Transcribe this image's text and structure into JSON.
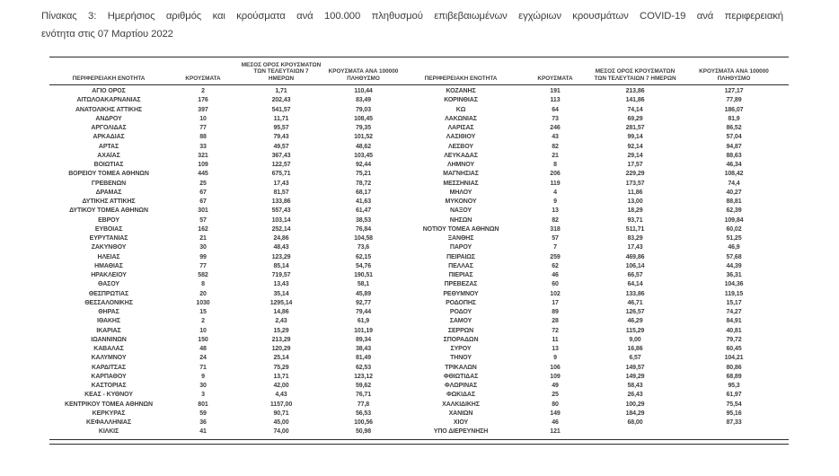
{
  "page": {
    "title_line1": "Πίνακας 3: Ημερήσιος αριθμός και κρούσματα ανά 100.000 πληθυσμού επιβεβαιωμένων εγχώριων κρουσμάτων COVID-19 ανά περιφερειακή",
    "title_line2": "ενότητα στις 07 Μαρτίου 2022"
  },
  "table": {
    "headers": {
      "region": "ΠΕΡΙΦΕΡΕΙΑΚΗ ΕΝΟΤΗΤΑ",
      "cases": "ΚΡΟΥΣΜΑΤΑ",
      "avg7day": "ΜΕΣΟΣ ΟΡΟΣ ΚΡΟΥΣΜΑΤΩΝ ΤΩΝ ΤΕΛΕΥΤΑΙΩΝ 7 ΗΜΕΡΩΝ",
      "per100k": "ΚΡΟΥΣΜΑΤΑ ΑΝΑ 100000 ΠΛΗΘΥΣΜΟ"
    },
    "left_rows": [
      [
        "ΑΓΙΟ ΟΡΟΣ",
        "2",
        "1,71",
        "110,44"
      ],
      [
        "ΑΙΤΩΛΟΑΚΑΡΝΑΝΙΑΣ",
        "176",
        "202,43",
        "83,49"
      ],
      [
        "ΑΝΑΤΟΛΙΚΗΣ ΑΤΤΙΚΗΣ",
        "397",
        "541,57",
        "79,03"
      ],
      [
        "ΑΝΔΡΟΥ",
        "10",
        "11,71",
        "108,45"
      ],
      [
        "ΑΡΓΟΛΙΔΑΣ",
        "77",
        "95,57",
        "79,35"
      ],
      [
        "ΑΡΚΑΔΙΑΣ",
        "88",
        "79,43",
        "101,52"
      ],
      [
        "ΑΡΤΑΣ",
        "33",
        "49,57",
        "48,62"
      ],
      [
        "ΑΧΑΪΑΣ",
        "321",
        "367,43",
        "103,45"
      ],
      [
        "ΒΟΙΩΤΙΑΣ",
        "109",
        "122,57",
        "92,44"
      ],
      [
        "ΒΟΡΕΙΟΥ ΤΟΜΕΑ ΑΘΗΝΩΝ",
        "445",
        "675,71",
        "75,21"
      ],
      [
        "ΓΡΕΒΕΝΩΝ",
        "25",
        "17,43",
        "78,72"
      ],
      [
        "ΔΡΑΜΑΣ",
        "67",
        "81,57",
        "68,17"
      ],
      [
        "ΔΥΤΙΚΗΣ ΑΤΤΙΚΗΣ",
        "67",
        "133,86",
        "41,63"
      ],
      [
        "ΔΥΤΙΚΟΥ ΤΟΜΕΑ ΑΘΗΝΩΝ",
        "301",
        "557,43",
        "61,47"
      ],
      [
        "ΕΒΡΟΥ",
        "57",
        "103,14",
        "38,53"
      ],
      [
        "ΕΥΒΟΙΑΣ",
        "162",
        "252,14",
        "76,84"
      ],
      [
        "ΕΥΡΥΤΑΝΙΑΣ",
        "21",
        "24,86",
        "104,58"
      ],
      [
        "ΖΑΚΥΝΘΟΥ",
        "30",
        "48,43",
        "73,6"
      ],
      [
        "ΗΛΕΙΑΣ",
        "99",
        "123,29",
        "62,15"
      ],
      [
        "ΗΜΑΘΙΑΣ",
        "77",
        "85,14",
        "54,76"
      ],
      [
        "ΗΡΑΚΛΕΙΟΥ",
        "582",
        "719,57",
        "190,51"
      ],
      [
        "ΘΑΣΟΥ",
        "8",
        "13,43",
        "58,1"
      ],
      [
        "ΘΕΣΠΡΩΤΙΑΣ",
        "20",
        "35,14",
        "45,89"
      ],
      [
        "ΘΕΣΣΑΛΟΝΙΚΗΣ",
        "1030",
        "1295,14",
        "92,77"
      ],
      [
        "ΘΗΡΑΣ",
        "15",
        "14,86",
        "79,44"
      ],
      [
        "ΙΘΑΚΗΣ",
        "2",
        "2,43",
        "61,9"
      ],
      [
        "ΙΚΑΡΙΑΣ",
        "10",
        "15,29",
        "101,19"
      ],
      [
        "ΙΩΑΝΝΙΝΩΝ",
        "150",
        "213,29",
        "89,34"
      ],
      [
        "ΚΑΒΑΛΑΣ",
        "48",
        "120,29",
        "38,43"
      ],
      [
        "ΚΑΛΥΜΝΟΥ",
        "24",
        "25,14",
        "81,49"
      ],
      [
        "ΚΑΡΔΙΤΣΑΣ",
        "71",
        "75,29",
        "62,53"
      ],
      [
        "ΚΑΡΠΑΘΟΥ",
        "9",
        "13,71",
        "123,12"
      ],
      [
        "ΚΑΣΤΟΡΙΑΣ",
        "30",
        "42,00",
        "59,62"
      ],
      [
        "ΚΕΑΣ - ΚΥΘΝΟΥ",
        "3",
        "4,43",
        "76,71"
      ],
      [
        "ΚΕΝΤΡΙΚΟΥ ΤΟΜΕΑ ΑΘΗΝΩΝ",
        "801",
        "1157,00",
        "77,8"
      ],
      [
        "ΚΕΡΚΥΡΑΣ",
        "59",
        "90,71",
        "56,53"
      ],
      [
        "ΚΕΦΑΛΛΗΝΙΑΣ",
        "36",
        "45,00",
        "100,56"
      ],
      [
        "ΚΙΛΚΙΣ",
        "41",
        "74,00",
        "50,98"
      ]
    ],
    "right_rows": [
      [
        "ΚΟΖΑΝΗΣ",
        "191",
        "213,86",
        "127,17"
      ],
      [
        "ΚΟΡΙΝΘΙΑΣ",
        "113",
        "141,86",
        "77,89"
      ],
      [
        "ΚΩ",
        "64",
        "74,14",
        "186,07"
      ],
      [
        "ΛΑΚΩΝΙΑΣ",
        "73",
        "69,29",
        "81,9"
      ],
      [
        "ΛΑΡΙΣΑΣ",
        "246",
        "281,57",
        "86,52"
      ],
      [
        "ΛΑΣΙΘΙΟΥ",
        "43",
        "99,14",
        "57,04"
      ],
      [
        "ΛΕΣΒΟΥ",
        "82",
        "92,14",
        "94,87"
      ],
      [
        "ΛΕΥΚΑΔΑΣ",
        "21",
        "29,14",
        "88,63"
      ],
      [
        "ΛΗΜΝΟΥ",
        "8",
        "17,57",
        "46,34"
      ],
      [
        "ΜΑΓΝΗΣΙΑΣ",
        "206",
        "229,29",
        "108,42"
      ],
      [
        "ΜΕΣΣΗΝΙΑΣ",
        "119",
        "173,57",
        "74,4"
      ],
      [
        "ΜΗΛΟΥ",
        "4",
        "11,86",
        "40,27"
      ],
      [
        "ΜΥΚΟΝΟΥ",
        "9",
        "13,00",
        "88,81"
      ],
      [
        "ΝΑΞΟΥ",
        "13",
        "18,29",
        "62,39"
      ],
      [
        "ΝΗΣΩΝ",
        "82",
        "93,71",
        "109,84"
      ],
      [
        "ΝΟΤΙΟΥ ΤΟΜΕΑ ΑΘΗΝΩΝ",
        "318",
        "511,71",
        "60,02"
      ],
      [
        "ΞΑΝΘΗΣ",
        "57",
        "83,29",
        "51,25"
      ],
      [
        "ΠΑΡΟΥ",
        "7",
        "17,43",
        "46,9"
      ],
      [
        "ΠΕΙΡΑΙΩΣ",
        "259",
        "469,86",
        "57,68"
      ],
      [
        "ΠΕΛΛΑΣ",
        "62",
        "106,14",
        "44,39"
      ],
      [
        "ΠΙΕΡΙΑΣ",
        "46",
        "66,57",
        "36,31"
      ],
      [
        "ΠΡΕΒΕΖΑΣ",
        "60",
        "64,14",
        "104,36"
      ],
      [
        "ΡΕΘΥΜΝΟΥ",
        "102",
        "133,86",
        "119,15"
      ],
      [
        "ΡΟΔΟΠΗΣ",
        "17",
        "46,71",
        "15,17"
      ],
      [
        "ΡΟΔΟΥ",
        "89",
        "126,57",
        "74,27"
      ],
      [
        "ΣΑΜΟΥ",
        "28",
        "46,29",
        "84,91"
      ],
      [
        "ΣΕΡΡΩΝ",
        "72",
        "115,29",
        "40,81"
      ],
      [
        "ΣΠΟΡΑΔΩΝ",
        "11",
        "9,00",
        "79,72"
      ],
      [
        "ΣΥΡΟΥ",
        "13",
        "16,86",
        "60,45"
      ],
      [
        "ΤΗΝΟΥ",
        "9",
        "6,57",
        "104,21"
      ],
      [
        "ΤΡΙΚΑΛΩΝ",
        "106",
        "149,57",
        "80,86"
      ],
      [
        "ΦΘΙΩΤΙΔΑΣ",
        "109",
        "149,29",
        "68,89"
      ],
      [
        "ΦΛΩΡΙΝΑΣ",
        "49",
        "58,43",
        "95,3"
      ],
      [
        "ΦΩΚΙΔΑΣ",
        "25",
        "26,43",
        "61,97"
      ],
      [
        "ΧΑΛΚΙΔΙΚΗΣ",
        "80",
        "100,29",
        "75,54"
      ],
      [
        "ΧΑΝΙΩΝ",
        "149",
        "184,29",
        "95,16"
      ],
      [
        "ΧΙΟΥ",
        "46",
        "68,00",
        "87,33"
      ],
      [
        "ΥΠΟ ΔΙΕΡΕΥΝΗΣΗ",
        "121",
        "",
        ""
      ]
    ]
  },
  "colors": {
    "text": "#3d3d3d",
    "border": "#2b2b2b",
    "background": "#ffffff"
  }
}
